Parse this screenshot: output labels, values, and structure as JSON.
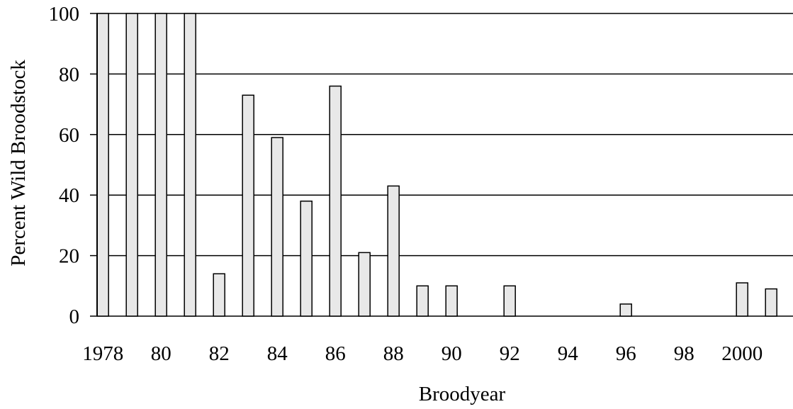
{
  "chart_data": {
    "type": "bar",
    "title": "",
    "xlabel": "Broodyear",
    "ylabel": "Percent Wild Broodstock",
    "ylim": [
      0,
      100
    ],
    "yticks": [
      "0",
      "20",
      "40",
      "60",
      "80",
      "100"
    ],
    "grid": "horizontal",
    "categories": [
      1978,
      1979,
      1980,
      1981,
      1982,
      1983,
      1984,
      1985,
      1986,
      1987,
      1988,
      1989,
      1990,
      1991,
      1992,
      1993,
      1994,
      1995,
      1996,
      1997,
      1998,
      1999,
      2000,
      2001
    ],
    "values": [
      100,
      100,
      100,
      100,
      14,
      73,
      59,
      38,
      76,
      21,
      43,
      10,
      10,
      0,
      10,
      0,
      0,
      0,
      4,
      0,
      0,
      0,
      11,
      9
    ],
    "xtick_labels": [
      {
        "year": 1978,
        "label": "1978"
      },
      {
        "year": 1980,
        "label": "80"
      },
      {
        "year": 1982,
        "label": "82"
      },
      {
        "year": 1984,
        "label": "84"
      },
      {
        "year": 1986,
        "label": "86"
      },
      {
        "year": 1988,
        "label": "88"
      },
      {
        "year": 1990,
        "label": "90"
      },
      {
        "year": 1992,
        "label": "92"
      },
      {
        "year": 1994,
        "label": "94"
      },
      {
        "year": 1996,
        "label": "96"
      },
      {
        "year": 1998,
        "label": "98"
      },
      {
        "year": 2000,
        "label": "2000"
      }
    ],
    "colors": {
      "bar_fill": "#e8e8e8",
      "bar_stroke": "#000000",
      "grid": "#000000",
      "axis": "#000000"
    }
  }
}
